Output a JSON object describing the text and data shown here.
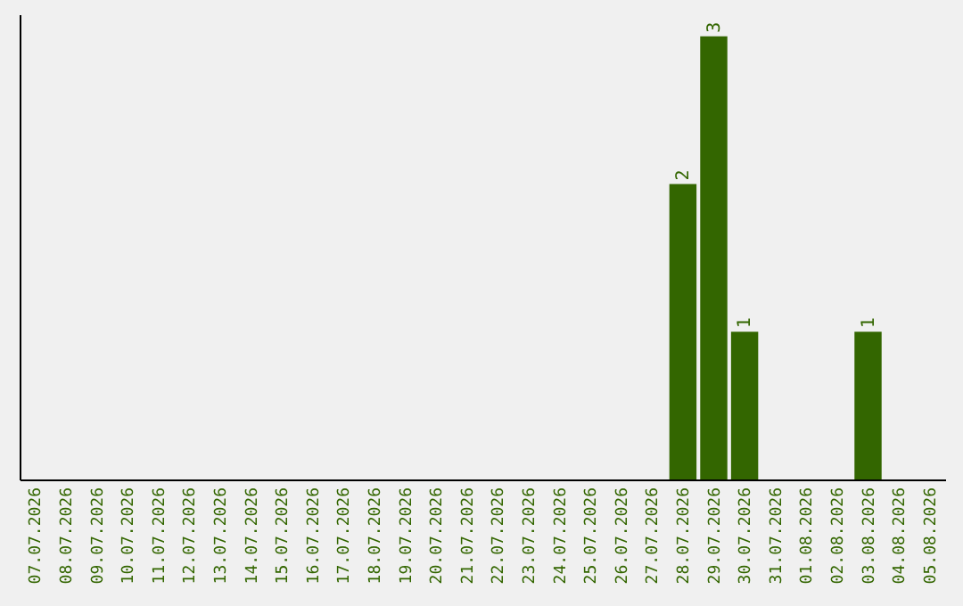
{
  "chart_data": {
    "type": "bar",
    "categories": [
      "07.07.2026",
      "08.07.2026",
      "09.07.2026",
      "10.07.2026",
      "11.07.2026",
      "12.07.2026",
      "13.07.2026",
      "14.07.2026",
      "15.07.2026",
      "16.07.2026",
      "17.07.2026",
      "18.07.2026",
      "19.07.2026",
      "20.07.2026",
      "21.07.2026",
      "22.07.2026",
      "23.07.2026",
      "24.07.2026",
      "25.07.2026",
      "26.07.2026",
      "27.07.2026",
      "28.07.2026",
      "29.07.2026",
      "30.07.2026",
      "31.07.2026",
      "01.08.2026",
      "02.08.2026",
      "03.08.2026",
      "04.08.2026",
      "05.08.2026"
    ],
    "values": [
      null,
      null,
      null,
      null,
      null,
      null,
      null,
      null,
      null,
      null,
      null,
      null,
      null,
      null,
      null,
      null,
      null,
      null,
      null,
      null,
      null,
      2,
      3,
      1,
      null,
      null,
      null,
      1,
      null,
      null
    ],
    "color": "#336600",
    "ylim": [
      0,
      3.15
    ],
    "data_labels": true,
    "tick_labels": "x",
    "grid": false
  }
}
